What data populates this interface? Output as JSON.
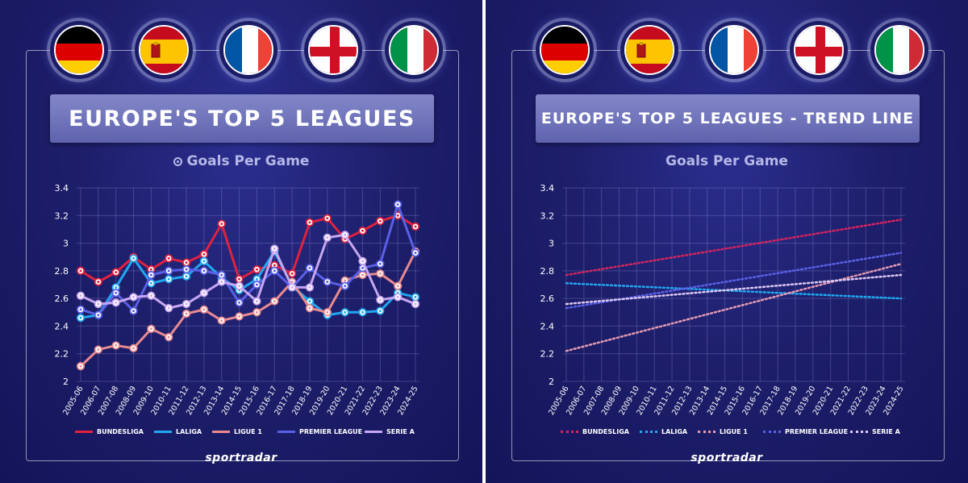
{
  "flags": [
    {
      "country": "Germany",
      "icon": "germany-flag-icon",
      "colors": [
        "#000000",
        "#dd0000",
        "#ffce00"
      ]
    },
    {
      "country": "Spain",
      "icon": "spain-flag-icon",
      "colors": [
        "#c60b1e",
        "#ffc400",
        "#c60b1e"
      ]
    },
    {
      "country": "France",
      "icon": "france-flag-icon",
      "colors": [
        "#0055a4",
        "#ffffff",
        "#ef4135"
      ]
    },
    {
      "country": "England",
      "icon": "england-flag-icon",
      "colors": [
        "#ffffff",
        "#ce1124"
      ]
    },
    {
      "country": "Italy",
      "icon": "italy-flag-icon",
      "colors": [
        "#009246",
        "#ffffff",
        "#ce2b37"
      ]
    }
  ],
  "brand": "sportradar",
  "chart_data": [
    {
      "type": "line",
      "title": "EUROPE'S TOP 5 LEAGUES",
      "subtitle": "Goals Per Game",
      "xlabel": "",
      "ylabel": "",
      "ylim": [
        2,
        3.4
      ],
      "yticks": [
        "2",
        "2.2",
        "2.4",
        "2.6",
        "2.8",
        "3",
        "3.2",
        "3.4"
      ],
      "grid": true,
      "legend": "bottom",
      "marker": "dot",
      "categories": [
        "2005-06",
        "2006-07",
        "2007-08",
        "2008-09",
        "2009-10",
        "2010-11",
        "2011-12",
        "2012-13",
        "2013-14",
        "2014-15",
        "2015-16",
        "2016-17",
        "2017-18",
        "2018-19",
        "2019-20",
        "2020-21",
        "2021-22",
        "2022-23",
        "2023-24",
        "2024-25"
      ],
      "series": [
        {
          "name": "BUNDESLIGA",
          "color": "#e0213f",
          "values": [
            2.8,
            2.72,
            2.79,
            2.9,
            2.81,
            2.89,
            2.86,
            2.92,
            3.14,
            2.74,
            2.81,
            2.84,
            2.78,
            3.15,
            3.18,
            3.03,
            3.09,
            3.16,
            3.2,
            3.12
          ]
        },
        {
          "name": "LALIGA",
          "color": "#22a7f0",
          "values": [
            2.46,
            2.48,
            2.68,
            2.89,
            2.71,
            2.74,
            2.76,
            2.87,
            2.75,
            2.66,
            2.74,
            2.94,
            2.69,
            2.58,
            2.48,
            2.5,
            2.5,
            2.51,
            2.64,
            2.61
          ]
        },
        {
          "name": "LIGUE 1",
          "color": "#e98a8f",
          "values": [
            2.11,
            2.23,
            2.26,
            2.24,
            2.38,
            2.32,
            2.49,
            2.52,
            2.44,
            2.47,
            2.5,
            2.58,
            2.72,
            2.53,
            2.5,
            2.73,
            2.77,
            2.78,
            2.69,
            2.94
          ]
        },
        {
          "name": "PREMIER LEAGUE",
          "color": "#5a60e6",
          "values": [
            2.52,
            2.48,
            2.64,
            2.51,
            2.77,
            2.8,
            2.81,
            2.8,
            2.77,
            2.57,
            2.7,
            2.8,
            2.68,
            2.82,
            2.72,
            2.69,
            2.82,
            2.85,
            3.28,
            2.93
          ]
        },
        {
          "name": "SERIE A",
          "color": "#c7a6f2",
          "values": [
            2.62,
            2.56,
            2.57,
            2.61,
            2.62,
            2.53,
            2.56,
            2.64,
            2.72,
            2.69,
            2.58,
            2.96,
            2.68,
            2.68,
            3.04,
            3.06,
            2.87,
            2.59,
            2.61,
            2.56
          ]
        }
      ]
    },
    {
      "type": "line",
      "title": "EUROPE'S TOP 5 LEAGUES - TREND LINE",
      "subtitle": "Goals Per Game",
      "xlabel": "",
      "ylabel": "",
      "ylim": [
        2,
        3.4
      ],
      "yticks": [
        "2",
        "2.2",
        "2.4",
        "2.6",
        "2.8",
        "3",
        "3.2",
        "3.4"
      ],
      "grid": true,
      "legend": "bottom",
      "line_style": "dotted",
      "categories": [
        "2005-06",
        "2006-07",
        "2007-08",
        "2008-09",
        "2009-10",
        "2010-11",
        "2011-12",
        "2012-13",
        "2013-14",
        "2014-15",
        "2015-16",
        "2016-17",
        "2017-18",
        "2018-19",
        "2019-20",
        "2020-21",
        "2021-22",
        "2022-23",
        "2023-24",
        "2024-25"
      ],
      "series": [
        {
          "name": "BUNDESLIGA",
          "color": "#d3245f",
          "start": 2.77,
          "end": 3.17
        },
        {
          "name": "LALIGA",
          "color": "#22a7f0",
          "start": 2.71,
          "end": 2.6
        },
        {
          "name": "LIGUE 1",
          "color": "#e59ab2",
          "start": 2.22,
          "end": 2.85
        },
        {
          "name": "PREMIER LEAGUE",
          "color": "#5a60e6",
          "start": 2.53,
          "end": 2.93
        },
        {
          "name": "SERIE A",
          "color": "#dcc8f5",
          "start": 2.56,
          "end": 2.77
        }
      ]
    }
  ]
}
